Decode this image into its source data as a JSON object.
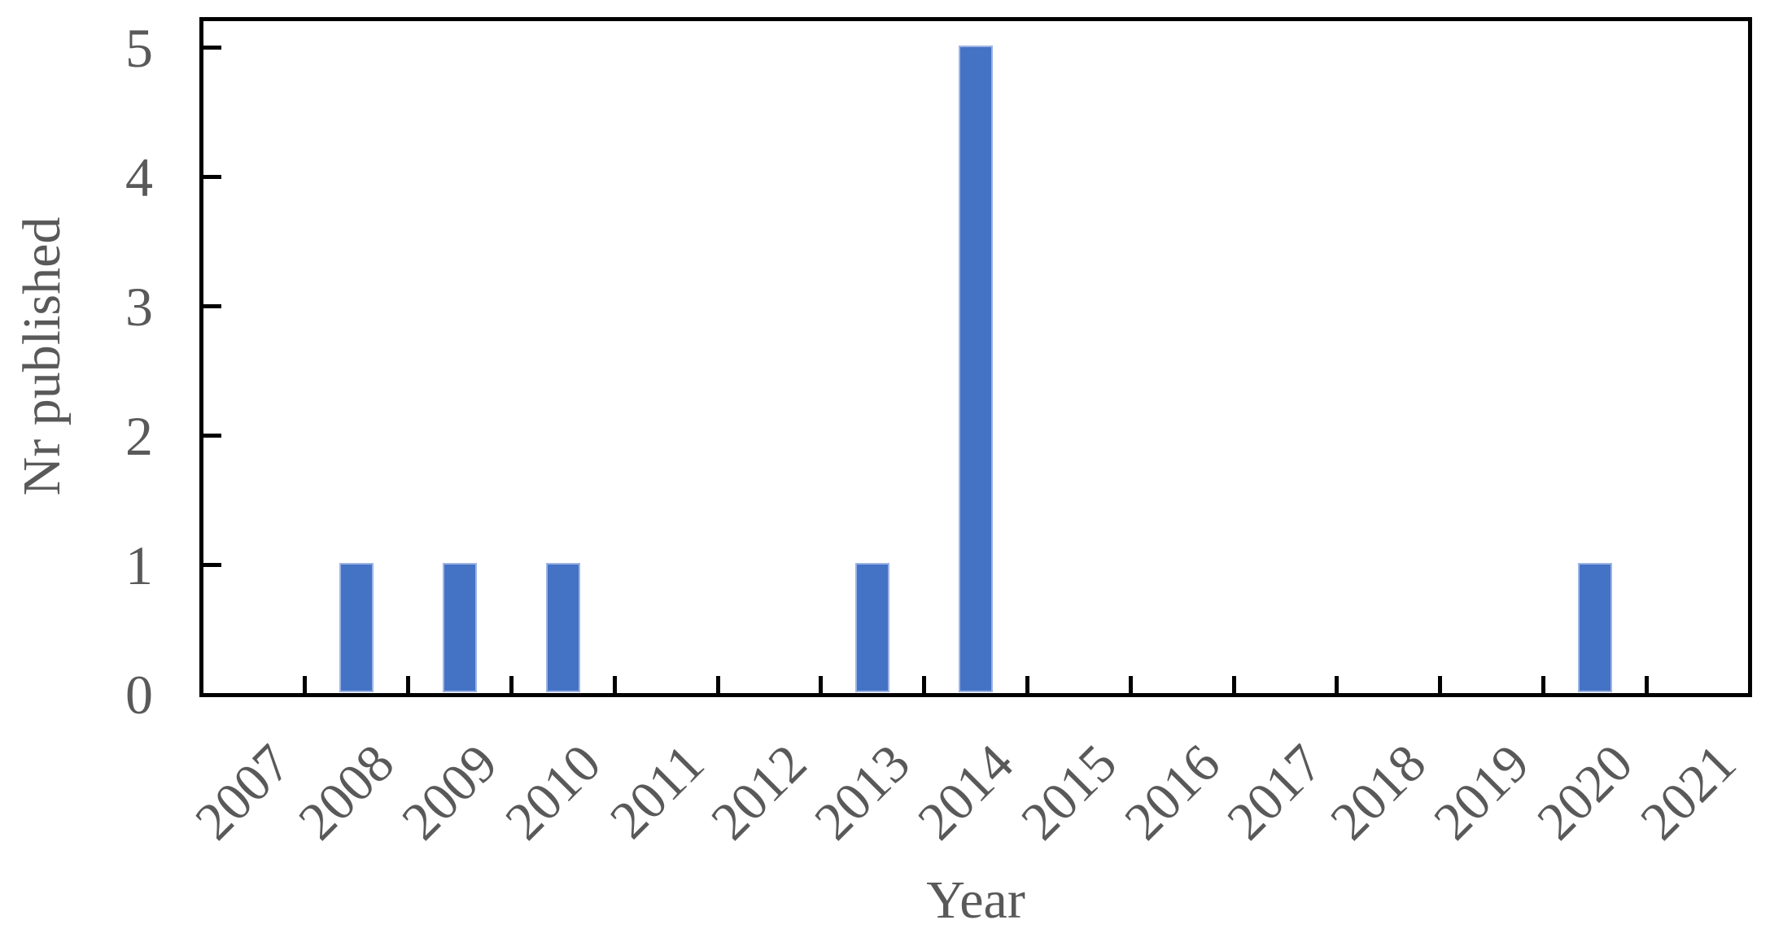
{
  "chart_data": {
    "type": "bar",
    "title": "",
    "xlabel": "Year",
    "ylabel": "Nr published",
    "categories": [
      "2007",
      "2008",
      "2009",
      "2010",
      "2011",
      "2012",
      "2013",
      "2014",
      "2015",
      "2016",
      "2017",
      "2018",
      "2019",
      "2020",
      "2021"
    ],
    "values": [
      0,
      1,
      1,
      1,
      0,
      0,
      1,
      5,
      0,
      0,
      0,
      0,
      0,
      1,
      0
    ],
    "yticks": [
      0,
      1,
      2,
      3,
      4,
      5
    ],
    "ylim": [
      0,
      5
    ],
    "grid": false,
    "legend": null,
    "bar_color": "#4472C4",
    "bar_edge_color": "#9db4e4",
    "label_color": "#595959",
    "axis_color": "#000000",
    "background_color": "#ffffff"
  }
}
